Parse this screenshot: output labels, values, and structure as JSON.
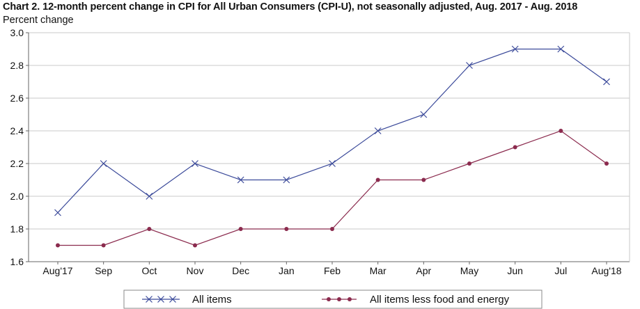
{
  "chart_data": {
    "type": "line",
    "title": "Chart 2. 12-month percent change in CPI for All Urban Consumers (CPI-U), not seasonally adjusted, Aug. 2017 - Aug. 2018",
    "ylabel": "Percent change",
    "xlabel": "",
    "categories": [
      "Aug'17",
      "Sep",
      "Oct",
      "Nov",
      "Dec",
      "Jan",
      "Feb",
      "Mar",
      "Apr",
      "May",
      "Jun",
      "Jul",
      "Aug'18"
    ],
    "ylim": [
      1.6,
      3.0
    ],
    "yticks": [
      "1.6",
      "1.8",
      "2.0",
      "2.2",
      "2.4",
      "2.6",
      "2.8",
      "3.0"
    ],
    "grid": true,
    "legend_position": "bottom",
    "series": [
      {
        "name": "All items",
        "color": "#3b4a9a",
        "marker": "x",
        "values": [
          1.9,
          2.2,
          2.0,
          2.2,
          2.1,
          2.1,
          2.2,
          2.4,
          2.5,
          2.8,
          2.9,
          2.9,
          2.7
        ]
      },
      {
        "name": "All items less food and energy",
        "color": "#8b2b4e",
        "marker": "dot",
        "values": [
          1.7,
          1.7,
          1.8,
          1.7,
          1.8,
          1.8,
          1.8,
          2.1,
          2.1,
          2.2,
          2.3,
          2.4,
          2.2
        ]
      }
    ]
  }
}
